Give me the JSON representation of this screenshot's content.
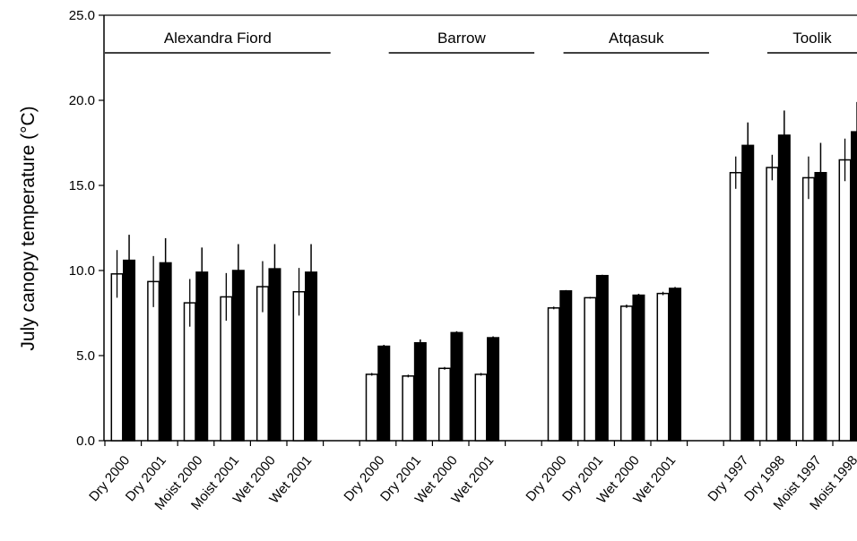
{
  "chart_data": {
    "type": "bar",
    "ylabel": "July canopy temperature (°C)",
    "ylim": [
      0,
      25
    ],
    "yticks": [
      "0.0",
      "5.0",
      "10.0",
      "15.0",
      "20.0",
      "25.0"
    ],
    "grid": false,
    "legend": "none",
    "colors": {
      "control": "#ffffff",
      "warmed": "#000000",
      "outline": "#000000"
    },
    "sites": [
      {
        "name": "Alexandra Fiord",
        "groups": [
          {
            "label": "Dry 2000",
            "control": 9.8,
            "control_err": 1.4,
            "warmed": 10.6,
            "warmed_err": 1.5
          },
          {
            "label": "Dry 2001",
            "control": 9.35,
            "control_err": 1.5,
            "warmed": 10.45,
            "warmed_err": 1.45
          },
          {
            "label": "Moist 2000",
            "control": 8.1,
            "control_err": 1.4,
            "warmed": 9.9,
            "warmed_err": 1.45
          },
          {
            "label": "Moist 2001",
            "control": 8.45,
            "control_err": 1.4,
            "warmed": 10.0,
            "warmed_err": 1.55
          },
          {
            "label": "Wet 2000",
            "control": 9.05,
            "control_err": 1.5,
            "warmed": 10.1,
            "warmed_err": 1.45
          },
          {
            "label": "Wet 2001",
            "control": 8.75,
            "control_err": 1.4,
            "warmed": 9.9,
            "warmed_err": 1.65
          }
        ]
      },
      {
        "name": "Barrow",
        "groups": [
          {
            "label": "Dry 2000",
            "control": 3.9,
            "control_err": 0.08,
            "warmed": 5.55,
            "warmed_err": 0.08
          },
          {
            "label": "Dry 2001",
            "control": 3.8,
            "control_err": 0.08,
            "warmed": 5.75,
            "warmed_err": 0.2
          },
          {
            "label": "Wet 2000",
            "control": 4.25,
            "control_err": 0.08,
            "warmed": 6.35,
            "warmed_err": 0.08
          },
          {
            "label": "Wet 2001",
            "control": 3.9,
            "control_err": 0.08,
            "warmed": 6.05,
            "warmed_err": 0.08
          }
        ]
      },
      {
        "name": "Atqasuk",
        "groups": [
          {
            "label": "Dry 2000",
            "control": 7.8,
            "control_err": 0.08,
            "warmed": 8.8,
            "warmed_err": 0.05
          },
          {
            "label": "Dry 2001",
            "control": 8.4,
            "control_err": 0.05,
            "warmed": 9.7,
            "warmed_err": 0.05
          },
          {
            "label": "Wet 2000",
            "control": 7.9,
            "control_err": 0.1,
            "warmed": 8.55,
            "warmed_err": 0.08
          },
          {
            "label": "Wet 2001",
            "control": 8.65,
            "control_err": 0.1,
            "warmed": 8.95,
            "warmed_err": 0.08
          }
        ]
      },
      {
        "name": "Toolik",
        "groups": [
          {
            "label": "Dry 1997",
            "control": 15.75,
            "control_err": 0.95,
            "warmed": 17.35,
            "warmed_err": 1.35
          },
          {
            "label": "Dry 1998",
            "control": 16.05,
            "control_err": 0.75,
            "warmed": 17.95,
            "warmed_err": 1.45
          },
          {
            "label": "Moist 1997",
            "control": 15.45,
            "control_err": 1.25,
            "warmed": 15.75,
            "warmed_err": 1.75
          },
          {
            "label": "Moist 1998",
            "control": 16.5,
            "control_err": 1.25,
            "warmed": 18.15,
            "warmed_err": 1.75
          }
        ]
      }
    ]
  }
}
